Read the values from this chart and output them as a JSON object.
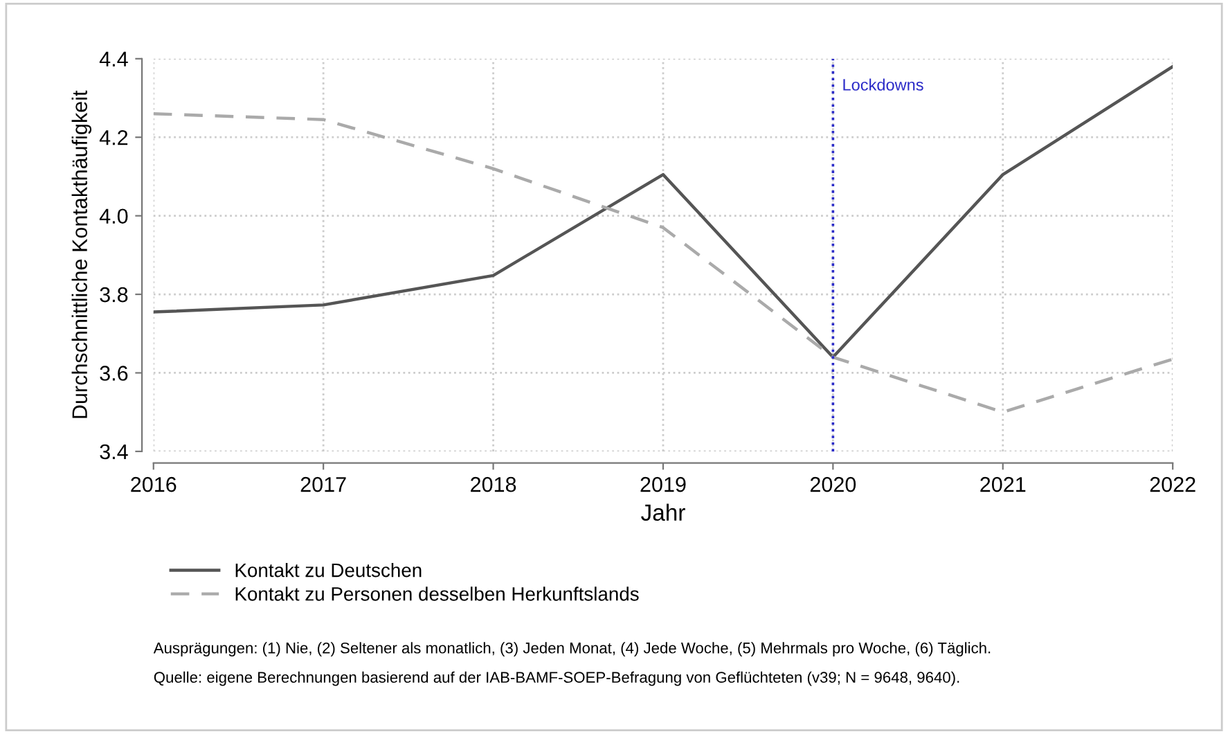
{
  "chart_data": {
    "type": "line",
    "xlabel": "Jahr",
    "ylabel": "Durchschnittliche Kontakthäufigkeit",
    "x": [
      2016,
      2017,
      2018,
      2019,
      2020,
      2021,
      2022
    ],
    "series": [
      {
        "name": "Kontakt zu Deutschen",
        "color": "#555555",
        "line_style": "solid",
        "values": [
          3.755,
          3.773,
          3.848,
          4.105,
          3.64,
          4.105,
          4.38
        ]
      },
      {
        "name": "Kontakt zu Personen desselben Herkunftslands",
        "color": "#aaaaaa",
        "line_style": "dashed",
        "values": [
          4.26,
          4.245,
          4.12,
          3.97,
          3.64,
          3.5,
          3.635
        ]
      }
    ],
    "xlim": [
      2016,
      2022
    ],
    "xticks": [
      2016,
      2017,
      2018,
      2019,
      2020,
      2021,
      2022
    ],
    "ylim": [
      3.4,
      4.4
    ],
    "yticks": [
      {
        "value": 3.4,
        "label": "3.4"
      },
      {
        "value": 3.6,
        "label": "3.6"
      },
      {
        "value": 3.8,
        "label": "3.8"
      },
      {
        "value": 4,
        "label": "4.0"
      },
      {
        "value": 4.2,
        "label": "4.2"
      },
      {
        "value": 4.4,
        "label": "4.4"
      }
    ],
    "ref_lines": [
      {
        "axis": "x",
        "value": 2020,
        "label": "Lockdowns",
        "color": "#2b2bc8",
        "line_style": "dotted"
      }
    ],
    "grid": true,
    "legend": "bottom",
    "marker": "none",
    "annotations": [
      "Ausprägungen: (1) Nie, (2) Seltener als monatlich, (3) Jeden Monat, (4) Jede Woche, (5) Mehrmals pro Woche, (6) Täglich.",
      "Quelle: eigene Berechnungen basierend auf der IAB-BAMF-SOEP-Befragung von Geflüchteten (v39; N = 9648, 9640)."
    ]
  }
}
